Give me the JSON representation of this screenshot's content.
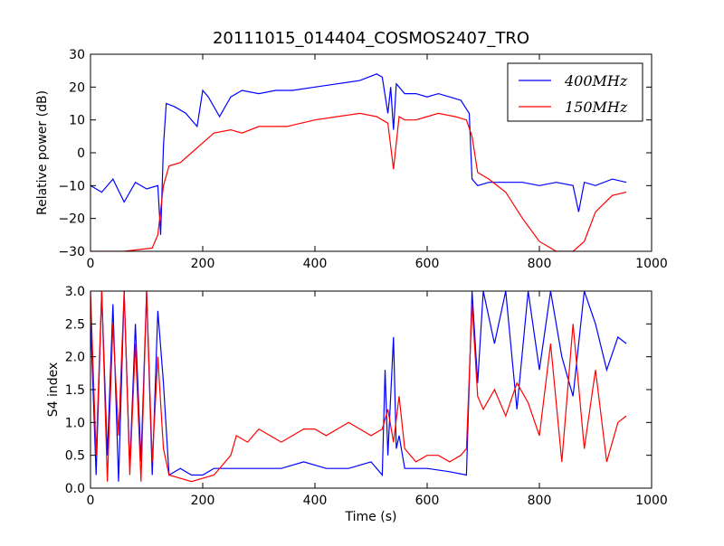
{
  "figure": {
    "title": "20111015_014404_COSMOS2407_TRO"
  },
  "chart_data": [
    {
      "type": "line",
      "title": "20111015_014404_COSMOS2407_TRO",
      "xlabel": "",
      "ylabel": "Relative power (dB)",
      "xlim": [
        0,
        1000
      ],
      "ylim": [
        -30,
        30
      ],
      "xticks": [
        "0",
        "200",
        "400",
        "600",
        "800",
        "1000"
      ],
      "yticks": [
        "−30",
        "−20",
        "−10",
        "0",
        "10",
        "20",
        "30"
      ],
      "legend": {
        "placement": "top-right",
        "entries": [
          "400MHz",
          "150MHz"
        ]
      },
      "series": [
        {
          "name": "400MHz",
          "color": "#0000ff",
          "x": [
            0,
            20,
            40,
            60,
            80,
            100,
            120,
            125,
            130,
            135,
            150,
            170,
            190,
            200,
            210,
            230,
            250,
            270,
            300,
            330,
            360,
            400,
            440,
            480,
            510,
            520,
            530,
            535,
            540,
            545,
            550,
            560,
            580,
            600,
            620,
            640,
            660,
            675,
            680,
            690,
            710,
            740,
            770,
            800,
            830,
            860,
            870,
            880,
            900,
            930,
            955
          ],
          "y": [
            -10,
            -12,
            -8,
            -15,
            -9,
            -11,
            -10,
            -25,
            2,
            15,
            14,
            12,
            8,
            19,
            17,
            11,
            17,
            19,
            18,
            19,
            19,
            20,
            21,
            22,
            24,
            23,
            12,
            20,
            7,
            21,
            20,
            18,
            18,
            17,
            18,
            17,
            16,
            12,
            -8,
            -10,
            -9,
            -9,
            -9,
            -10,
            -9,
            -10,
            -18,
            -9,
            -10,
            -8,
            -9
          ]
        },
        {
          "name": "150MHz",
          "color": "#ff0000",
          "x": [
            0,
            60,
            110,
            120,
            130,
            140,
            160,
            180,
            200,
            220,
            250,
            270,
            300,
            350,
            400,
            440,
            480,
            510,
            530,
            540,
            550,
            560,
            580,
            600,
            620,
            650,
            670,
            680,
            690,
            710,
            740,
            770,
            800,
            830,
            860,
            880,
            900,
            930,
            955
          ],
          "y": [
            -30,
            -30,
            -29,
            -25,
            -10,
            -4,
            -3,
            0,
            3,
            6,
            7,
            6,
            8,
            8,
            10,
            11,
            12,
            11,
            9,
            -5,
            11,
            10,
            10,
            11,
            12,
            11,
            10,
            5,
            -6,
            -8,
            -12,
            -20,
            -27,
            -30,
            -30,
            -27,
            -18,
            -13,
            -12
          ]
        }
      ]
    },
    {
      "type": "line",
      "title": "",
      "xlabel": "Time (s)",
      "ylabel": "S4 index",
      "xlim": [
        0,
        1000
      ],
      "ylim": [
        0,
        3
      ],
      "xticks": [
        "0",
        "200",
        "400",
        "600",
        "800",
        "1000"
      ],
      "yticks": [
        "0.0",
        "0.5",
        "1.0",
        "1.5",
        "2.0",
        "2.5",
        "3.0"
      ],
      "series": [
        {
          "name": "400MHz",
          "color": "#0000ff",
          "x": [
            0,
            10,
            20,
            30,
            40,
            50,
            60,
            70,
            80,
            90,
            100,
            110,
            120,
            130,
            140,
            160,
            180,
            200,
            220,
            260,
            300,
            340,
            380,
            420,
            460,
            500,
            520,
            525,
            530,
            540,
            545,
            550,
            560,
            600,
            640,
            670,
            680,
            690,
            700,
            720,
            740,
            760,
            780,
            800,
            820,
            840,
            860,
            880,
            900,
            920,
            940,
            955
          ],
          "y": [
            2.6,
            0.2,
            3.0,
            0.5,
            2.8,
            0.1,
            3.0,
            0.3,
            2.5,
            0.4,
            3.0,
            0.2,
            2.7,
            1.6,
            0.2,
            0.3,
            0.2,
            0.2,
            0.3,
            0.3,
            0.3,
            0.3,
            0.4,
            0.3,
            0.3,
            0.4,
            0.2,
            1.8,
            0.5,
            2.3,
            0.6,
            0.8,
            0.3,
            0.3,
            0.25,
            0.2,
            3.0,
            1.6,
            3.0,
            2.2,
            3.0,
            1.2,
            3.0,
            1.8,
            3.0,
            2.0,
            1.4,
            3.0,
            2.5,
            1.8,
            2.3,
            2.2
          ]
        },
        {
          "name": "150MHz",
          "color": "#ff0000",
          "x": [
            0,
            10,
            20,
            30,
            40,
            50,
            60,
            70,
            80,
            90,
            100,
            110,
            120,
            130,
            140,
            160,
            180,
            200,
            220,
            250,
            260,
            280,
            300,
            320,
            340,
            360,
            380,
            400,
            420,
            440,
            460,
            480,
            500,
            520,
            530,
            540,
            550,
            560,
            580,
            600,
            620,
            640,
            660,
            670,
            680,
            690,
            700,
            720,
            740,
            760,
            780,
            800,
            820,
            840,
            860,
            880,
            900,
            920,
            940,
            955
          ],
          "y": [
            3.0,
            0.5,
            3.0,
            0.1,
            2.5,
            0.8,
            3.0,
            0.2,
            2.2,
            0.1,
            3.0,
            0.4,
            2.0,
            0.6,
            0.2,
            0.15,
            0.1,
            0.15,
            0.2,
            0.5,
            0.8,
            0.7,
            0.9,
            0.8,
            0.7,
            0.8,
            0.9,
            0.9,
            0.8,
            0.9,
            1.0,
            0.9,
            0.8,
            0.9,
            1.2,
            0.7,
            1.4,
            0.6,
            0.4,
            0.5,
            0.5,
            0.4,
            0.5,
            0.6,
            2.8,
            1.4,
            1.2,
            1.5,
            1.1,
            1.6,
            1.3,
            0.8,
            2.2,
            0.4,
            2.5,
            0.6,
            1.8,
            0.4,
            1.0,
            1.1
          ]
        }
      ]
    }
  ]
}
